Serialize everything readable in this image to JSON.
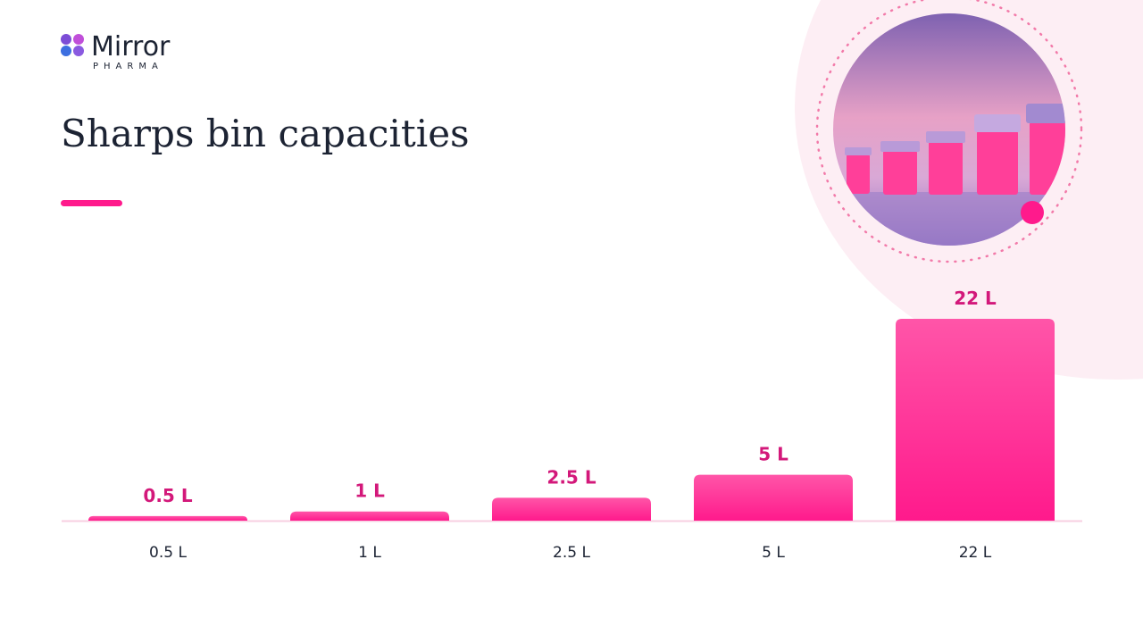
{
  "brand": {
    "name": "Mirror",
    "tagline": "PHARMA"
  },
  "chart_data": {
    "type": "bar",
    "title": "Sharps bin capacities",
    "categories": [
      "0.5 L",
      "1 L",
      "2.5 L",
      "5 L",
      "22 L"
    ],
    "values": [
      0.5,
      1,
      2.5,
      5,
      22
    ],
    "value_labels": [
      "0.5 L",
      "1 L",
      "2.5 L",
      "5 L",
      "22 L"
    ],
    "color": "#ff2a93"
  }
}
